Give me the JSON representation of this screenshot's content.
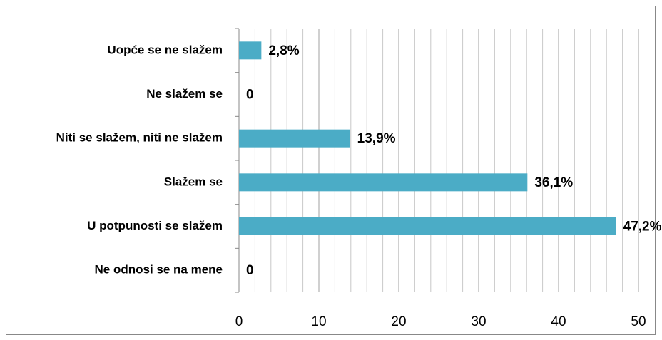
{
  "chart_data": {
    "type": "barh",
    "categories": [
      "Uopće se ne slažem",
      "Ne slažem se",
      "Niti se slažem, niti ne slažem",
      "Slažem se",
      "U potpunosti se slažem",
      "Ne odnosi se na mene"
    ],
    "values": [
      2.8,
      0,
      13.9,
      36.1,
      47.2,
      0
    ],
    "value_labels": [
      "2,8%",
      "0",
      "13,9%",
      "36,1%",
      "47,2%",
      "0"
    ],
    "color": "#4bacc6",
    "xlim": [
      0,
      50
    ],
    "xticks": [
      0,
      10,
      20,
      30,
      40,
      50
    ],
    "xminorticks": [
      2,
      4,
      6,
      8,
      12,
      14,
      16,
      18,
      22,
      24,
      26,
      28,
      32,
      34,
      36,
      38,
      42,
      44,
      46,
      48
    ],
    "grid": true
  }
}
